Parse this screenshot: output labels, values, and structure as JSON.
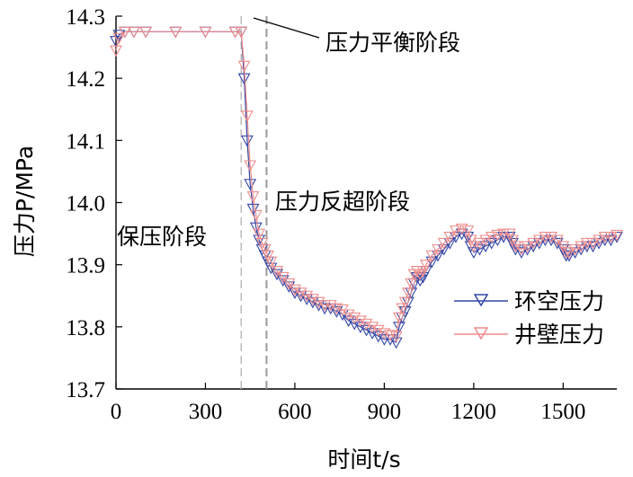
{
  "chart_data": {
    "type": "line",
    "xlabel": "时间t/s",
    "ylabel": "压力P/MPa",
    "xlim": [
      0,
      1680
    ],
    "ylim": [
      13.7,
      14.3
    ],
    "xticks": [
      "0",
      "300",
      "600",
      "900",
      "1200",
      "1500"
    ],
    "yticks": [
      "13.7",
      "13.8",
      "13.9",
      "14.0",
      "14.1",
      "14.2",
      "14.3"
    ],
    "grid": false,
    "legend_position": "right",
    "vlines": [
      420,
      505
    ],
    "annotations": [
      {
        "text": "压力平衡阶段",
        "x": 480,
        "y": 14.28
      },
      {
        "text": "压力反超阶段",
        "x": 560,
        "y": 13.985
      },
      {
        "text": "保压阶段",
        "x": 200,
        "y": 13.94
      }
    ],
    "colors": {
      "annulus": "#3346a6",
      "wall": "#ee8c8c"
    },
    "series": [
      {
        "name": "环空压力",
        "x": [
          0,
          10,
          30,
          60,
          100,
          200,
          300,
          400,
          420,
          430,
          440,
          450,
          460,
          470,
          480,
          490,
          500,
          510,
          520,
          540,
          560,
          580,
          600,
          620,
          640,
          660,
          680,
          700,
          720,
          740,
          760,
          780,
          800,
          820,
          840,
          860,
          880,
          900,
          920,
          940,
          950,
          960,
          970,
          980,
          990,
          1000,
          1010,
          1020,
          1030,
          1040,
          1060,
          1080,
          1100,
          1120,
          1140,
          1160,
          1180,
          1190,
          1200,
          1220,
          1240,
          1260,
          1280,
          1300,
          1320,
          1330,
          1340,
          1360,
          1380,
          1400,
          1420,
          1440,
          1460,
          1480,
          1500,
          1510,
          1520,
          1540,
          1560,
          1580,
          1600,
          1620,
          1640,
          1660,
          1680
        ],
        "y": [
          14.26,
          14.27,
          14.275,
          14.275,
          14.275,
          14.275,
          14.275,
          14.275,
          14.275,
          14.2,
          14.1,
          14.03,
          13.99,
          13.96,
          13.94,
          13.925,
          13.915,
          13.905,
          13.895,
          13.885,
          13.875,
          13.865,
          13.855,
          13.85,
          13.845,
          13.84,
          13.835,
          13.83,
          13.83,
          13.825,
          13.82,
          13.81,
          13.805,
          13.8,
          13.795,
          13.79,
          13.785,
          13.78,
          13.78,
          13.775,
          13.8,
          13.815,
          13.825,
          13.84,
          13.855,
          13.87,
          13.88,
          13.875,
          13.88,
          13.89,
          13.905,
          13.915,
          13.925,
          13.935,
          13.945,
          13.95,
          13.945,
          13.93,
          13.92,
          13.925,
          13.93,
          13.935,
          13.94,
          13.945,
          13.945,
          13.935,
          13.925,
          13.92,
          13.925,
          13.93,
          13.935,
          13.94,
          13.94,
          13.935,
          13.925,
          13.915,
          13.915,
          13.92,
          13.925,
          13.93,
          13.93,
          13.935,
          13.94,
          13.94,
          13.945
        ]
      },
      {
        "name": "井壁压力",
        "x": [
          0,
          10,
          30,
          60,
          100,
          200,
          300,
          400,
          420,
          430,
          440,
          450,
          460,
          470,
          480,
          490,
          500,
          510,
          520,
          540,
          560,
          580,
          600,
          620,
          640,
          660,
          680,
          700,
          720,
          740,
          760,
          780,
          800,
          820,
          840,
          860,
          880,
          900,
          920,
          940,
          950,
          960,
          970,
          980,
          990,
          1000,
          1010,
          1020,
          1030,
          1040,
          1060,
          1080,
          1100,
          1120,
          1140,
          1160,
          1180,
          1190,
          1200,
          1220,
          1240,
          1260,
          1280,
          1300,
          1320,
          1330,
          1340,
          1360,
          1380,
          1400,
          1420,
          1440,
          1460,
          1480,
          1500,
          1510,
          1520,
          1540,
          1560,
          1580,
          1600,
          1620,
          1640,
          1660,
          1680
        ],
        "y": [
          14.245,
          14.265,
          14.275,
          14.275,
          14.275,
          14.275,
          14.275,
          14.275,
          14.275,
          14.22,
          14.14,
          14.06,
          14.01,
          13.98,
          13.95,
          13.935,
          13.925,
          13.915,
          13.905,
          13.89,
          13.88,
          13.87,
          13.86,
          13.855,
          13.85,
          13.845,
          13.84,
          13.835,
          13.835,
          13.83,
          13.828,
          13.82,
          13.815,
          13.81,
          13.805,
          13.8,
          13.795,
          13.79,
          13.787,
          13.785,
          13.815,
          13.83,
          13.84,
          13.855,
          13.87,
          13.885,
          13.89,
          13.885,
          13.89,
          13.9,
          13.915,
          13.925,
          13.935,
          13.945,
          13.955,
          13.958,
          13.955,
          13.94,
          13.93,
          13.935,
          13.94,
          13.945,
          13.948,
          13.95,
          13.95,
          13.94,
          13.93,
          13.925,
          13.93,
          13.935,
          13.94,
          13.945,
          13.945,
          13.94,
          13.93,
          13.92,
          13.92,
          13.925,
          13.93,
          13.935,
          13.935,
          13.94,
          13.945,
          13.945,
          13.948
        ]
      }
    ]
  }
}
